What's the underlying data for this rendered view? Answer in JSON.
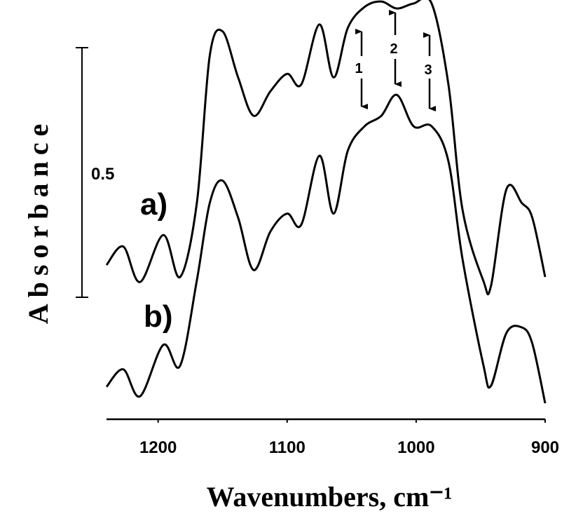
{
  "chart_data": {
    "type": "line",
    "xlabel": "Wavenumbers, cm⁻¹",
    "ylabel": "Absorbance",
    "x": [
      1240,
      1227,
      1214,
      1196,
      1183,
      1170,
      1160,
      1150,
      1138,
      1126,
      1113,
      1100,
      1089,
      1075,
      1064,
      1053,
      1040,
      1027,
      1015,
      1002,
      988,
      975,
      964,
      948,
      942,
      930,
      918,
      910,
      900
    ],
    "series": [
      {
        "name": "a)",
        "color": "#000000",
        "values": [
          0.309,
          0.346,
          0.275,
          0.369,
          0.285,
          0.433,
          0.728,
          0.777,
          0.685,
          0.608,
          0.657,
          0.692,
          0.671,
          0.791,
          0.685,
          0.784,
          0.826,
          0.837,
          0.823,
          0.833,
          0.833,
          0.671,
          0.419,
          0.278,
          0.267,
          0.461,
          0.433,
          0.404,
          0.285
        ]
      },
      {
        "name": "b)",
        "color": "#000000",
        "values": [
          0.065,
          0.1,
          0.046,
          0.149,
          0.107,
          0.278,
          0.433,
          0.478,
          0.404,
          0.299,
          0.376,
          0.412,
          0.39,
          0.528,
          0.412,
          0.538,
          0.587,
          0.608,
          0.65,
          0.587,
          0.587,
          0.517,
          0.32,
          0.11,
          0.067,
          0.173,
          0.184,
          0.152,
          0.032
        ]
      }
    ],
    "xlim": [
      1240,
      900
    ],
    "xticks": [
      1200,
      1100,
      1000,
      900
    ],
    "ylim": [
      0,
      0.84
    ],
    "scale_bar": 0.5,
    "annotations": [
      "1",
      "2",
      "3"
    ]
  }
}
